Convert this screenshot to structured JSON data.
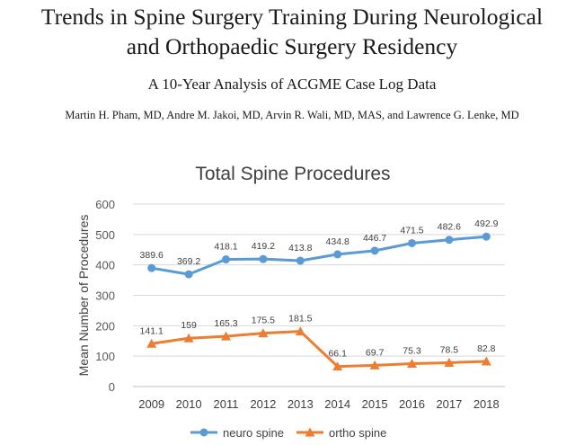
{
  "paper": {
    "title_line1": "Trends in Spine Surgery Training During Neurological",
    "title_line2": "and Orthopaedic Surgery Residency",
    "subtitle": "A 10-Year Analysis of ACGME Case Log Data",
    "authors": "Martin H. Pham, MD, Andre M. Jakoi, MD, Arvin R. Wali, MD, MAS, and Lawrence G. Lenke, MD"
  },
  "chart_data": {
    "type": "line",
    "title": "Total Spine Procedures",
    "xlabel": "",
    "ylabel": "Mean Number of Procedures",
    "categories": [
      "2009",
      "2010",
      "2011",
      "2012",
      "2013",
      "2014",
      "2015",
      "2016",
      "2017",
      "2018"
    ],
    "ylim": [
      0,
      600
    ],
    "yticks": [
      0,
      100,
      200,
      300,
      400,
      500,
      600
    ],
    "grid": true,
    "legend_position": "bottom",
    "series": [
      {
        "name": "neuro spine",
        "color": "#5b9bd5",
        "marker": "circle",
        "values": [
          389.6,
          369.2,
          418.1,
          419.2,
          413.8,
          434.8,
          446.7,
          471.5,
          482.6,
          492.9
        ],
        "labels": [
          "389.6",
          "369.2",
          "418.1",
          "419.2",
          "413.8",
          "434.8",
          "446.7",
          "471.5",
          "482.6",
          "492.9"
        ]
      },
      {
        "name": "ortho spine",
        "color": "#ed7d31",
        "marker": "triangle",
        "values": [
          141.1,
          159,
          165.3,
          175.5,
          181.5,
          66.1,
          69.7,
          75.3,
          78.5,
          82.8
        ],
        "labels": [
          "141.1",
          "159",
          "165.3",
          "175.5",
          "181.5",
          "66.1",
          "69.7",
          "75.3",
          "78.5",
          "82.8"
        ]
      }
    ]
  }
}
